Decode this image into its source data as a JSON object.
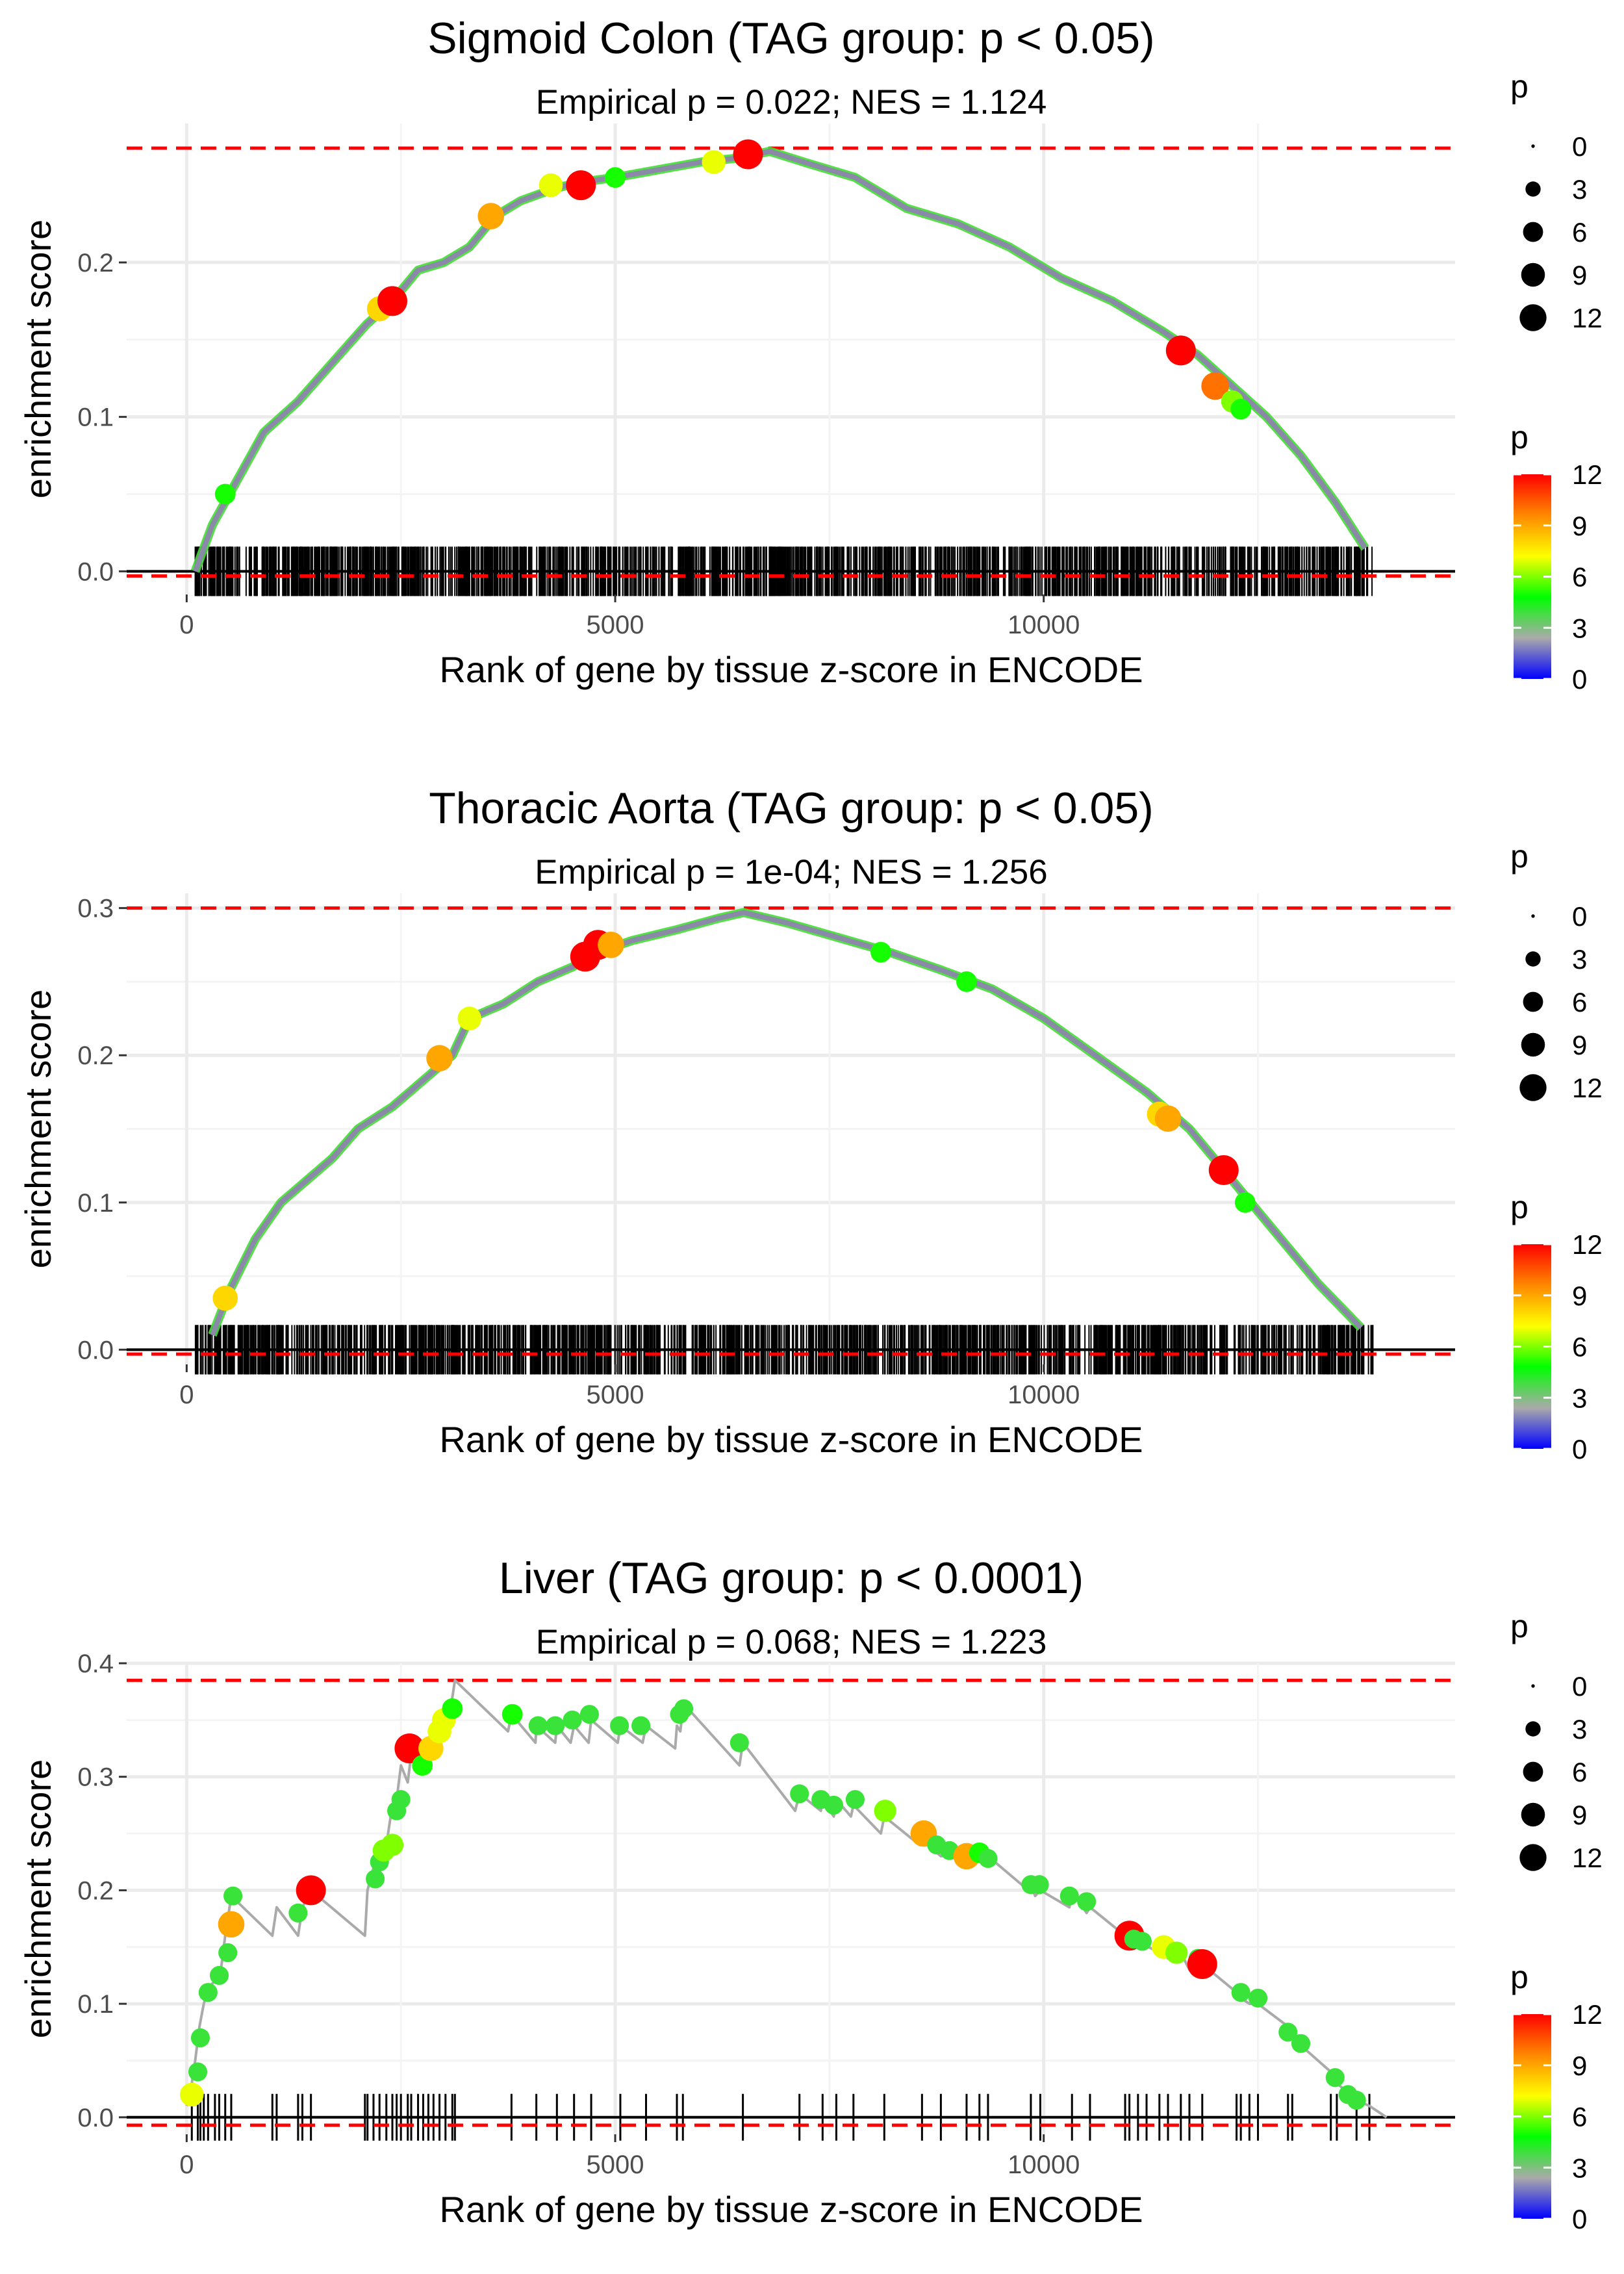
{
  "colors": {
    "threshold_line": "#ff0000",
    "zero_line": "#000000",
    "gridline": "#ebebeb",
    "es_curve": "#aaaaaa",
    "hit_ticks": "#000000",
    "gradient": [
      "#0000ff",
      "#aaaaaa",
      "#00ff00",
      "#ffff00",
      "#ff8800",
      "#ff0000"
    ]
  },
  "shared": {
    "xlabel": "Rank of gene by tissue z-score in ENCODE",
    "ylabel": "enrichment score",
    "size_legend_title": "p",
    "size_legend_labels": [
      "0",
      "3",
      "6",
      "9",
      "12"
    ],
    "color_legend_title": "p",
    "color_legend_labels": [
      "0",
      "3",
      "6",
      "9",
      "12"
    ]
  },
  "chart_data": [
    {
      "type": "line",
      "title": "Sigmoid Colon (TAG group: p < 0.05)",
      "subtitle": "Empirical p = 0.022; NES = 1.124",
      "xlabel": "Rank of gene by tissue z-score in ENCODE",
      "ylabel": "enrichment score",
      "xlim": [
        -700,
        14800
      ],
      "ylim": [
        -0.015,
        0.29
      ],
      "xticks": [
        0,
        5000,
        10000
      ],
      "xtick_labels": [
        "0",
        "5000",
        "10000"
      ],
      "yticks": [
        0.0,
        0.1,
        0.2
      ],
      "ytick_labels": [
        "0.0",
        "0.1",
        "0.2"
      ],
      "threshold_max": 0.274,
      "threshold_min": -0.003,
      "n_genes": 14000,
      "curve": {
        "x": [
          100,
          300,
          600,
          900,
          1300,
          1700,
          2100,
          2400,
          2700,
          3000,
          3300,
          3600,
          3900,
          4300,
          4600,
          5000,
          5500,
          6000,
          6500,
          6800,
          7200,
          7800,
          8400,
          9000,
          9600,
          10200,
          10800,
          11400,
          11800,
          12200,
          12600,
          13000,
          13400,
          13750
        ],
        "y": [
          0.0,
          0.03,
          0.06,
          0.09,
          0.11,
          0.135,
          0.16,
          0.175,
          0.195,
          0.2,
          0.21,
          0.23,
          0.24,
          0.248,
          0.252,
          0.255,
          0.26,
          0.265,
          0.268,
          0.272,
          0.265,
          0.255,
          0.235,
          0.225,
          0.21,
          0.19,
          0.175,
          0.155,
          0.14,
          0.12,
          0.1,
          0.075,
          0.045,
          0.015
        ]
      },
      "points": {
        "x": [
          450,
          2250,
          2400,
          3550,
          4250,
          4600,
          5000,
          6150,
          6550,
          11600,
          12000,
          12200,
          12300
        ],
        "y": [
          0.05,
          0.17,
          0.175,
          0.23,
          0.25,
          0.25,
          0.255,
          0.265,
          0.27,
          0.143,
          0.12,
          0.11,
          0.105
        ],
        "p": [
          5,
          8,
          12,
          9,
          7,
          12,
          5,
          7,
          12,
          12,
          10,
          6,
          5
        ]
      },
      "hits_density": "dense",
      "hits_range": [
        100,
        13850
      ]
    },
    {
      "type": "line",
      "title": "Thoracic Aorta (TAG group: p < 0.05)",
      "subtitle": "Empirical p = 1e-04; NES = 1.256",
      "xlabel": "Rank of gene by tissue z-score in ENCODE",
      "ylabel": "enrichment score",
      "xlim": [
        -700,
        14800
      ],
      "ylim": [
        -0.01,
        0.31
      ],
      "xticks": [
        0,
        5000,
        10000
      ],
      "xtick_labels": [
        "0",
        "5000",
        "10000"
      ],
      "yticks": [
        0.0,
        0.1,
        0.2,
        0.3
      ],
      "ytick_labels": [
        "0.0",
        "0.1",
        "0.2",
        "0.3"
      ],
      "threshold_max": 0.3,
      "threshold_min": -0.003,
      "n_genes": 14000,
      "curve": {
        "x": [
          300,
          500,
          800,
          1100,
          1400,
          1700,
          2000,
          2400,
          2800,
          3100,
          3300,
          3700,
          4100,
          4500,
          4800,
          5200,
          5700,
          6200,
          6500,
          7000,
          7600,
          8200,
          8800,
          9400,
          10000,
          10600,
          11200,
          11700,
          12200,
          12700,
          13200,
          13700
        ],
        "y": [
          0.01,
          0.04,
          0.075,
          0.1,
          0.115,
          0.13,
          0.15,
          0.165,
          0.185,
          0.2,
          0.225,
          0.235,
          0.25,
          0.26,
          0.27,
          0.278,
          0.285,
          0.293,
          0.297,
          0.29,
          0.28,
          0.27,
          0.258,
          0.245,
          0.225,
          0.2,
          0.175,
          0.15,
          0.115,
          0.08,
          0.045,
          0.015
        ]
      },
      "points": {
        "x": [
          450,
          2950,
          3300,
          4650,
          4800,
          4950,
          8100,
          9100,
          11350,
          11450,
          12100,
          12350
        ],
        "y": [
          0.035,
          0.198,
          0.225,
          0.267,
          0.275,
          0.275,
          0.27,
          0.25,
          0.16,
          0.157,
          0.122,
          0.1
        ],
        "p": [
          8,
          9,
          7,
          12,
          12,
          9,
          5,
          5,
          8,
          9,
          12,
          5
        ]
      },
      "hits_density": "dense",
      "hits_range": [
        100,
        13850
      ]
    },
    {
      "type": "line",
      "title": "Liver (TAG group: p < 0.0001)",
      "subtitle": "Empirical p = 0.068; NES = 1.223",
      "xlabel": "Rank of gene by tissue z-score in ENCODE",
      "ylabel": "enrichment score",
      "xlim": [
        -700,
        14800
      ],
      "ylim": [
        -0.015,
        0.4
      ],
      "xticks": [
        0,
        5000,
        10000
      ],
      "xtick_labels": [
        "0",
        "5000",
        "10000"
      ],
      "yticks": [
        0.0,
        0.1,
        0.2,
        0.3,
        0.4
      ],
      "ytick_labels": [
        "0.0",
        "0.1",
        "0.2",
        "0.3",
        "0.4"
      ],
      "threshold_max": 0.385,
      "threshold_min": -0.007,
      "n_genes": 14000,
      "curve": {
        "x": [
          0,
          60,
          100,
          150,
          200,
          260,
          330,
          400,
          450,
          520,
          1000,
          1050,
          1300,
          1350,
          1450,
          2080,
          2110,
          2180,
          2250,
          2330,
          2400,
          2450,
          2500,
          2580,
          2620,
          2700,
          2760,
          2820,
          2880,
          2950,
          3020,
          3100,
          3130,
          3750,
          3790,
          4070,
          4080,
          4300,
          4320,
          4480,
          4520,
          4690,
          4720,
          5030,
          5060,
          5320,
          5360,
          5700,
          5720,
          5760,
          5790,
          5850,
          6450,
          6490,
          7100,
          7150,
          7400,
          7420,
          7550,
          7580,
          7750,
          7780,
          8100,
          8140,
          8550,
          8580,
          8650,
          8800,
          9100,
          9250,
          9350,
          9820,
          9850,
          9900,
          9960,
          10300,
          10330,
          10500,
          10540,
          10950,
          11000,
          11100,
          11350,
          11450,
          11600,
          11700,
          11850,
          12250,
          12300,
          12400,
          12500,
          12850,
          12900,
          13350,
          13420,
          13650,
          13800,
          14000
        ],
        "y": [
          0.01,
          0.03,
          0.05,
          0.08,
          0.1,
          0.115,
          0.12,
          0.13,
          0.16,
          0.195,
          0.16,
          0.185,
          0.16,
          0.185,
          0.2,
          0.16,
          0.2,
          0.22,
          0.235,
          0.24,
          0.275,
          0.28,
          0.31,
          0.295,
          0.32,
          0.305,
          0.33,
          0.315,
          0.34,
          0.325,
          0.35,
          0.37,
          0.385,
          0.34,
          0.355,
          0.33,
          0.345,
          0.33,
          0.345,
          0.33,
          0.345,
          0.33,
          0.35,
          0.33,
          0.345,
          0.33,
          0.345,
          0.325,
          0.345,
          0.34,
          0.36,
          0.36,
          0.31,
          0.33,
          0.27,
          0.285,
          0.27,
          0.28,
          0.265,
          0.28,
          0.265,
          0.275,
          0.25,
          0.265,
          0.24,
          0.245,
          0.24,
          0.23,
          0.235,
          0.225,
          0.23,
          0.2,
          0.205,
          0.195,
          0.2,
          0.185,
          0.2,
          0.18,
          0.185,
          0.16,
          0.165,
          0.155,
          0.145,
          0.14,
          0.145,
          0.13,
          0.135,
          0.11,
          0.105,
          0.1,
          0.1,
          0.08,
          0.07,
          0.04,
          0.03,
          0.015,
          0.01,
          0.0
        ]
      },
      "points": {
        "x": [
          60,
          130,
          160,
          250,
          380,
          480,
          520,
          540,
          1300,
          1450,
          2200,
          2250,
          2300,
          2400,
          2450,
          2500,
          2600,
          2750,
          2850,
          2950,
          3000,
          3100,
          3800,
          4100,
          4300,
          4500,
          4700,
          5050,
          5300,
          5750,
          5800,
          6450,
          7150,
          7400,
          7550,
          7800,
          8150,
          8600,
          8750,
          8900,
          9100,
          9250,
          9350,
          9850,
          9950,
          10300,
          10500,
          11000,
          11050,
          11150,
          11400,
          11550,
          11800,
          11850,
          12300,
          12500,
          12850,
          13000,
          13400,
          13550,
          13650
        ],
        "y": [
          0.02,
          0.04,
          0.07,
          0.11,
          0.125,
          0.145,
          0.17,
          0.195,
          0.18,
          0.2,
          0.21,
          0.225,
          0.235,
          0.24,
          0.27,
          0.28,
          0.325,
          0.31,
          0.325,
          0.34,
          0.35,
          0.36,
          0.355,
          0.345,
          0.345,
          0.35,
          0.355,
          0.345,
          0.345,
          0.355,
          0.36,
          0.33,
          0.285,
          0.28,
          0.275,
          0.28,
          0.27,
          0.25,
          0.24,
          0.235,
          0.23,
          0.233,
          0.228,
          0.205,
          0.205,
          0.195,
          0.19,
          0.16,
          0.157,
          0.155,
          0.15,
          0.145,
          0.14,
          0.135,
          0.11,
          0.105,
          0.075,
          0.065,
          0.035,
          0.02,
          0.015
        ],
        "p": [
          7,
          4,
          4,
          4,
          4,
          4,
          9,
          4,
          4,
          12,
          4,
          4,
          6,
          6,
          4,
          4,
          12,
          5,
          8,
          7,
          7,
          5,
          5,
          4,
          4,
          4,
          4,
          4,
          4,
          4,
          4,
          4,
          4,
          4,
          4,
          4,
          6,
          9,
          4,
          4,
          9,
          5,
          4,
          4,
          4,
          4,
          4,
          12,
          4,
          4,
          7,
          6,
          4,
          12,
          4,
          4,
          4,
          4,
          4,
          4,
          4
        ]
      },
      "hits_density": "sparse",
      "hits": [
        60,
        130,
        160,
        200,
        250,
        330,
        380,
        450,
        520,
        1000,
        1050,
        1300,
        1350,
        1450,
        2080,
        2110,
        2180,
        2250,
        2330,
        2400,
        2450,
        2500,
        2580,
        2620,
        2700,
        2760,
        2820,
        2880,
        2950,
        3020,
        3100,
        3130,
        3790,
        4080,
        4320,
        4520,
        4720,
        5060,
        5360,
        5720,
        5790,
        6490,
        7150,
        7420,
        7580,
        7780,
        8140,
        8580,
        8800,
        9100,
        9250,
        9350,
        9850,
        9960,
        10330,
        10540,
        10950,
        11000,
        11100,
        11200,
        11350,
        11450,
        11600,
        11700,
        11850,
        12250,
        12300,
        12400,
        12500,
        12850,
        12900,
        13350,
        13420,
        13650,
        13800
      ]
    }
  ]
}
